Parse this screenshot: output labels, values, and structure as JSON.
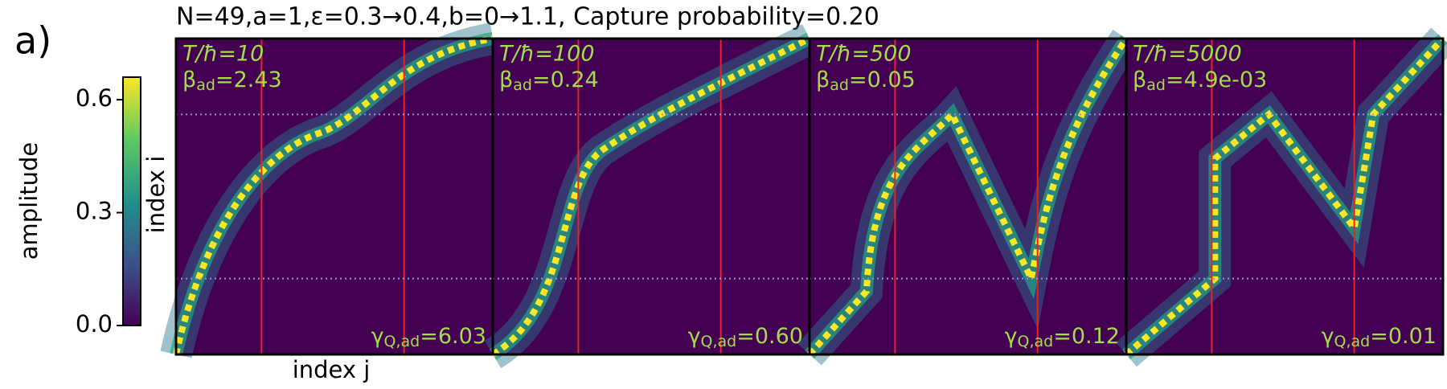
{
  "figure": {
    "panel_label": "a)",
    "title": "N=49,a=1,ε=0.3→0.4,b=0→1.1, Capture probability=0.20",
    "colorbar": {
      "label": "amplitude",
      "range": [
        0,
        0.66
      ],
      "ticks": [
        {
          "value": 0,
          "label": "0.0"
        },
        0.3,
        0.6
      ]
    },
    "y_label": "index i",
    "x_label": "index j",
    "panels": [
      {
        "time": "T/ħ=10",
        "beta": {
          "symbol": "β",
          "sub": "ad",
          "text": "=2.43"
        },
        "gamma": {
          "symbol": "γ",
          "sub": "Q,ad",
          "text": "=6.03"
        }
      },
      {
        "time": "T/ħ=100",
        "beta": {
          "symbol": "β",
          "sub": "ad",
          "text": "=0.24"
        },
        "gamma": {
          "symbol": "γ",
          "sub": "Q,ad",
          "text": "=0.60"
        }
      },
      {
        "time": "T/ħ=500",
        "beta": {
          "symbol": "β",
          "sub": "ad",
          "text": "=0.05"
        },
        "gamma": {
          "symbol": "γ",
          "sub": "Q,ad",
          "text": "=0.12"
        }
      },
      {
        "time": "T/ħ=5000",
        "beta": {
          "symbol": "β",
          "sub": "ad",
          "text": "=4.9e-03"
        },
        "gamma": {
          "symbol": "γ",
          "sub": "Q,ad",
          "text": "=0.01"
        }
      }
    ]
  }
}
